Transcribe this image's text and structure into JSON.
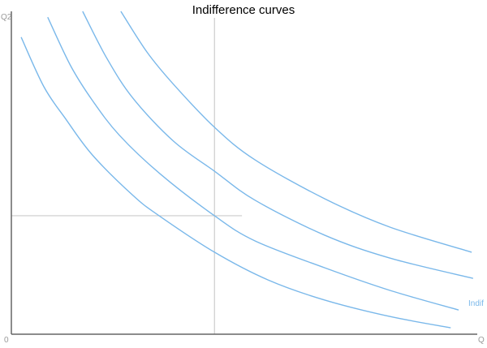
{
  "chart_data": {
    "type": "line",
    "title": "Indifference curves",
    "xlabel": "Q",
    "ylabel": "Q2",
    "origin_label": "0",
    "series_label": "Indif",
    "xlim": [
      0,
      100
    ],
    "ylim": [
      0,
      100
    ],
    "grid": false,
    "colors": {
      "curve": "#7ab8ea",
      "axis": "#666666",
      "reference": "#cccccc"
    },
    "series": [
      {
        "points": [
          [
            2.1,
            92.0
          ],
          [
            7.0,
            76.6
          ],
          [
            11.7,
            66.6
          ],
          [
            17.4,
            55.5
          ],
          [
            26.1,
            43.0
          ],
          [
            31.7,
            36.7
          ],
          [
            43.6,
            25.4
          ],
          [
            55.1,
            16.8
          ],
          [
            67.2,
            10.6
          ],
          [
            81.2,
            5.5
          ],
          [
            94.3,
            2.0
          ]
        ]
      },
      {
        "points": [
          [
            7.8,
            98.2
          ],
          [
            12.7,
            83.2
          ],
          [
            17.4,
            72.4
          ],
          [
            23.2,
            61.6
          ],
          [
            31.9,
            49.7
          ],
          [
            43.6,
            36.7
          ],
          [
            52.3,
            28.9
          ],
          [
            67.2,
            20.6
          ],
          [
            81.2,
            13.6
          ],
          [
            96.0,
            7.5
          ]
        ]
      },
      {
        "points": [
          [
            15.3,
            100
          ],
          [
            20.4,
            85.7
          ],
          [
            26.1,
            73.1
          ],
          [
            34.8,
            59.8
          ],
          [
            43.6,
            50.5
          ],
          [
            52.3,
            41.5
          ],
          [
            67.2,
            30.7
          ],
          [
            81.2,
            23.6
          ],
          [
            99.1,
            17.3
          ]
        ]
      },
      {
        "points": [
          [
            23.5,
            100
          ],
          [
            29.1,
            87.4
          ],
          [
            34.8,
            77.4
          ],
          [
            43.6,
            64.1
          ],
          [
            52.3,
            54.0
          ],
          [
            67.2,
            42.0
          ],
          [
            81.2,
            33.2
          ],
          [
            98.8,
            25.4
          ]
        ]
      }
    ],
    "reference_lines": {
      "vertical": {
        "x": 43.6,
        "y_range": [
          0,
          98
        ]
      },
      "horizontal": {
        "y": 36.7,
        "x_range": [
          0,
          49.5
        ]
      }
    }
  }
}
